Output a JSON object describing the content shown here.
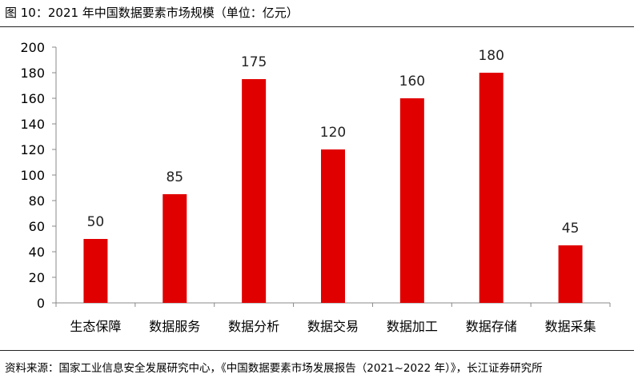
{
  "figure": {
    "title": "图 10：2021 年中国数据要素市场规模（单位：亿元）",
    "source": "资料来源：国家工业信息安全发展研究中心，《中国数据要素市场发展报告（2021~2022 年）》，长江证券研究所"
  },
  "chart_data": {
    "type": "bar",
    "title": "2021 年中国数据要素市场规模（单位：亿元）",
    "categories": [
      "生态保障",
      "数据服务",
      "数据分析",
      "数据交易",
      "数据加工",
      "数据存储",
      "数据采集"
    ],
    "values": [
      50,
      85,
      175,
      120,
      160,
      180,
      45
    ],
    "ylim": [
      0,
      200
    ],
    "yticks": [
      0,
      20,
      40,
      60,
      80,
      100,
      120,
      140,
      160,
      180,
      200
    ],
    "xlabel": "",
    "ylabel": "",
    "grid": false,
    "legend": "none",
    "bar_color": "#e00000",
    "data_labels": true
  }
}
